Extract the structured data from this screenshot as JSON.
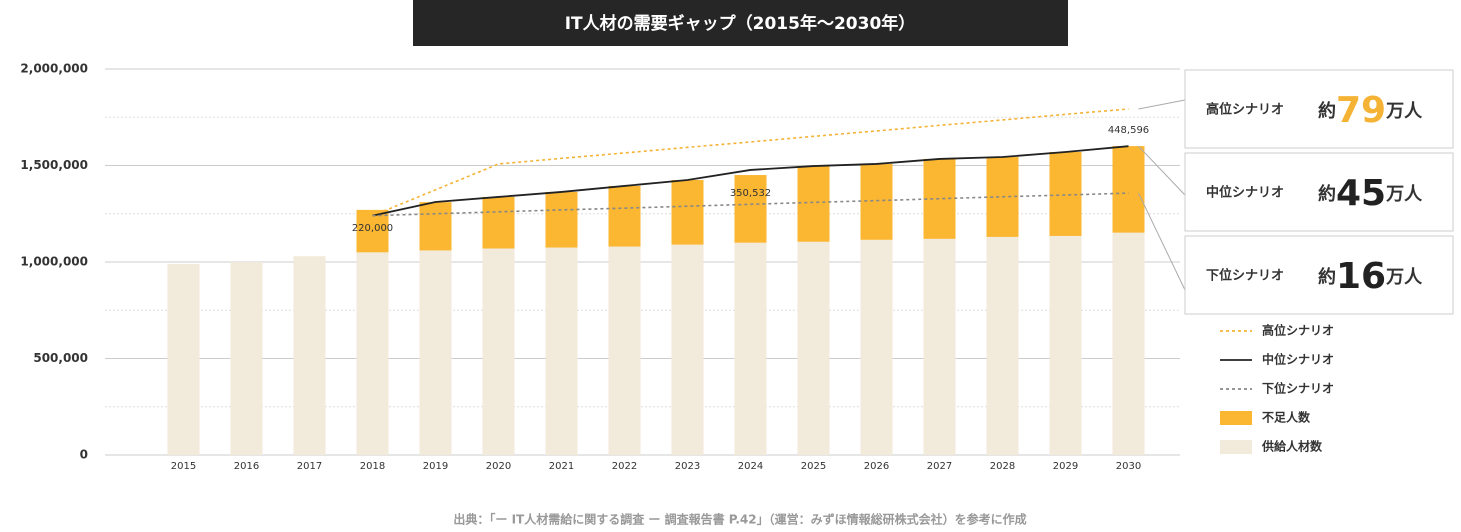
{
  "chart_data": {
    "type": "bar",
    "title": "IT人材の需要ギャップ（2015年〜2030年）",
    "categories": [
      "2015",
      "2016",
      "2017",
      "2018",
      "2019",
      "2020",
      "2021",
      "2022",
      "2023",
      "2024",
      "2025",
      "2026",
      "2027",
      "2028",
      "2029",
      "2030"
    ],
    "series": [
      {
        "name": "供給人材数",
        "kind": "bar",
        "color": "#f2eadb",
        "values": [
          990000,
          1000000,
          1030000,
          1050000,
          1060000,
          1070000,
          1075000,
          1080000,
          1090000,
          1100000,
          1105000,
          1115000,
          1120000,
          1130000,
          1135000,
          1152000
        ]
      },
      {
        "name": "不足人数",
        "kind": "bar",
        "color": "#fbb632",
        "values": [
          null,
          null,
          null,
          220000,
          250000,
          267000,
          288000,
          314000,
          335000,
          350532,
          392000,
          393000,
          414000,
          414000,
          435000,
          448596
        ],
        "value_labels": [
          null,
          null,
          null,
          "220,000",
          null,
          null,
          null,
          null,
          null,
          "350,532",
          null,
          null,
          null,
          null,
          null,
          "448,596"
        ]
      },
      {
        "name": "高位シナリオ",
        "kind": "line",
        "dash": true,
        "color": "#f5b335",
        "values": [
          null,
          null,
          null,
          1240000,
          1374000,
          1508000,
          1537000,
          1565000,
          1594000,
          1622000,
          1651000,
          1679000,
          1708000,
          1736000,
          1765000,
          1793000
        ]
      },
      {
        "name": "中位シナリオ",
        "kind": "line",
        "dash": false,
        "color": "#222222",
        "values": [
          null,
          null,
          null,
          1240000,
          1311000,
          1337000,
          1363000,
          1394000,
          1425000,
          1477000,
          1497000,
          1508000,
          1534000,
          1544000,
          1570000,
          1600000
        ]
      },
      {
        "name": "下位シナリオ",
        "kind": "line",
        "dash": true,
        "color": "#888888",
        "values": [
          null,
          null,
          null,
          1240000,
          1250000,
          1260000,
          1270000,
          1279000,
          1289000,
          1299000,
          1309000,
          1318000,
          1328000,
          1338000,
          1347000,
          1357000
        ]
      }
    ],
    "ylim": [
      0,
      2000000
    ],
    "yticks": [
      0,
      {
        "value": 500000,
        "label": "500,000"
      },
      {
        "value": 1000000,
        "label": "1,000,000"
      },
      {
        "value": 1500000,
        "label": "1,500,000"
      },
      {
        "value": 2000000,
        "label": "2,000,000"
      }
    ],
    "grid": true,
    "callouts": [
      {
        "label": "高位シナリオ",
        "prefix": "約",
        "value": 79,
        "unit": "万人",
        "color": "#f5b335"
      },
      {
        "label": "中位シナリオ",
        "prefix": "約",
        "value": 45,
        "unit": "万人",
        "color": "#222222"
      },
      {
        "label": "下位シナリオ",
        "prefix": "約",
        "value": 16,
        "unit": "万人",
        "color": "#222222"
      }
    ],
    "source": "出典：「ー IT人材需給に関する調査 ー 調査報告書 P.42」（運営：みずほ情報総研株式会社）を参考に作成"
  }
}
